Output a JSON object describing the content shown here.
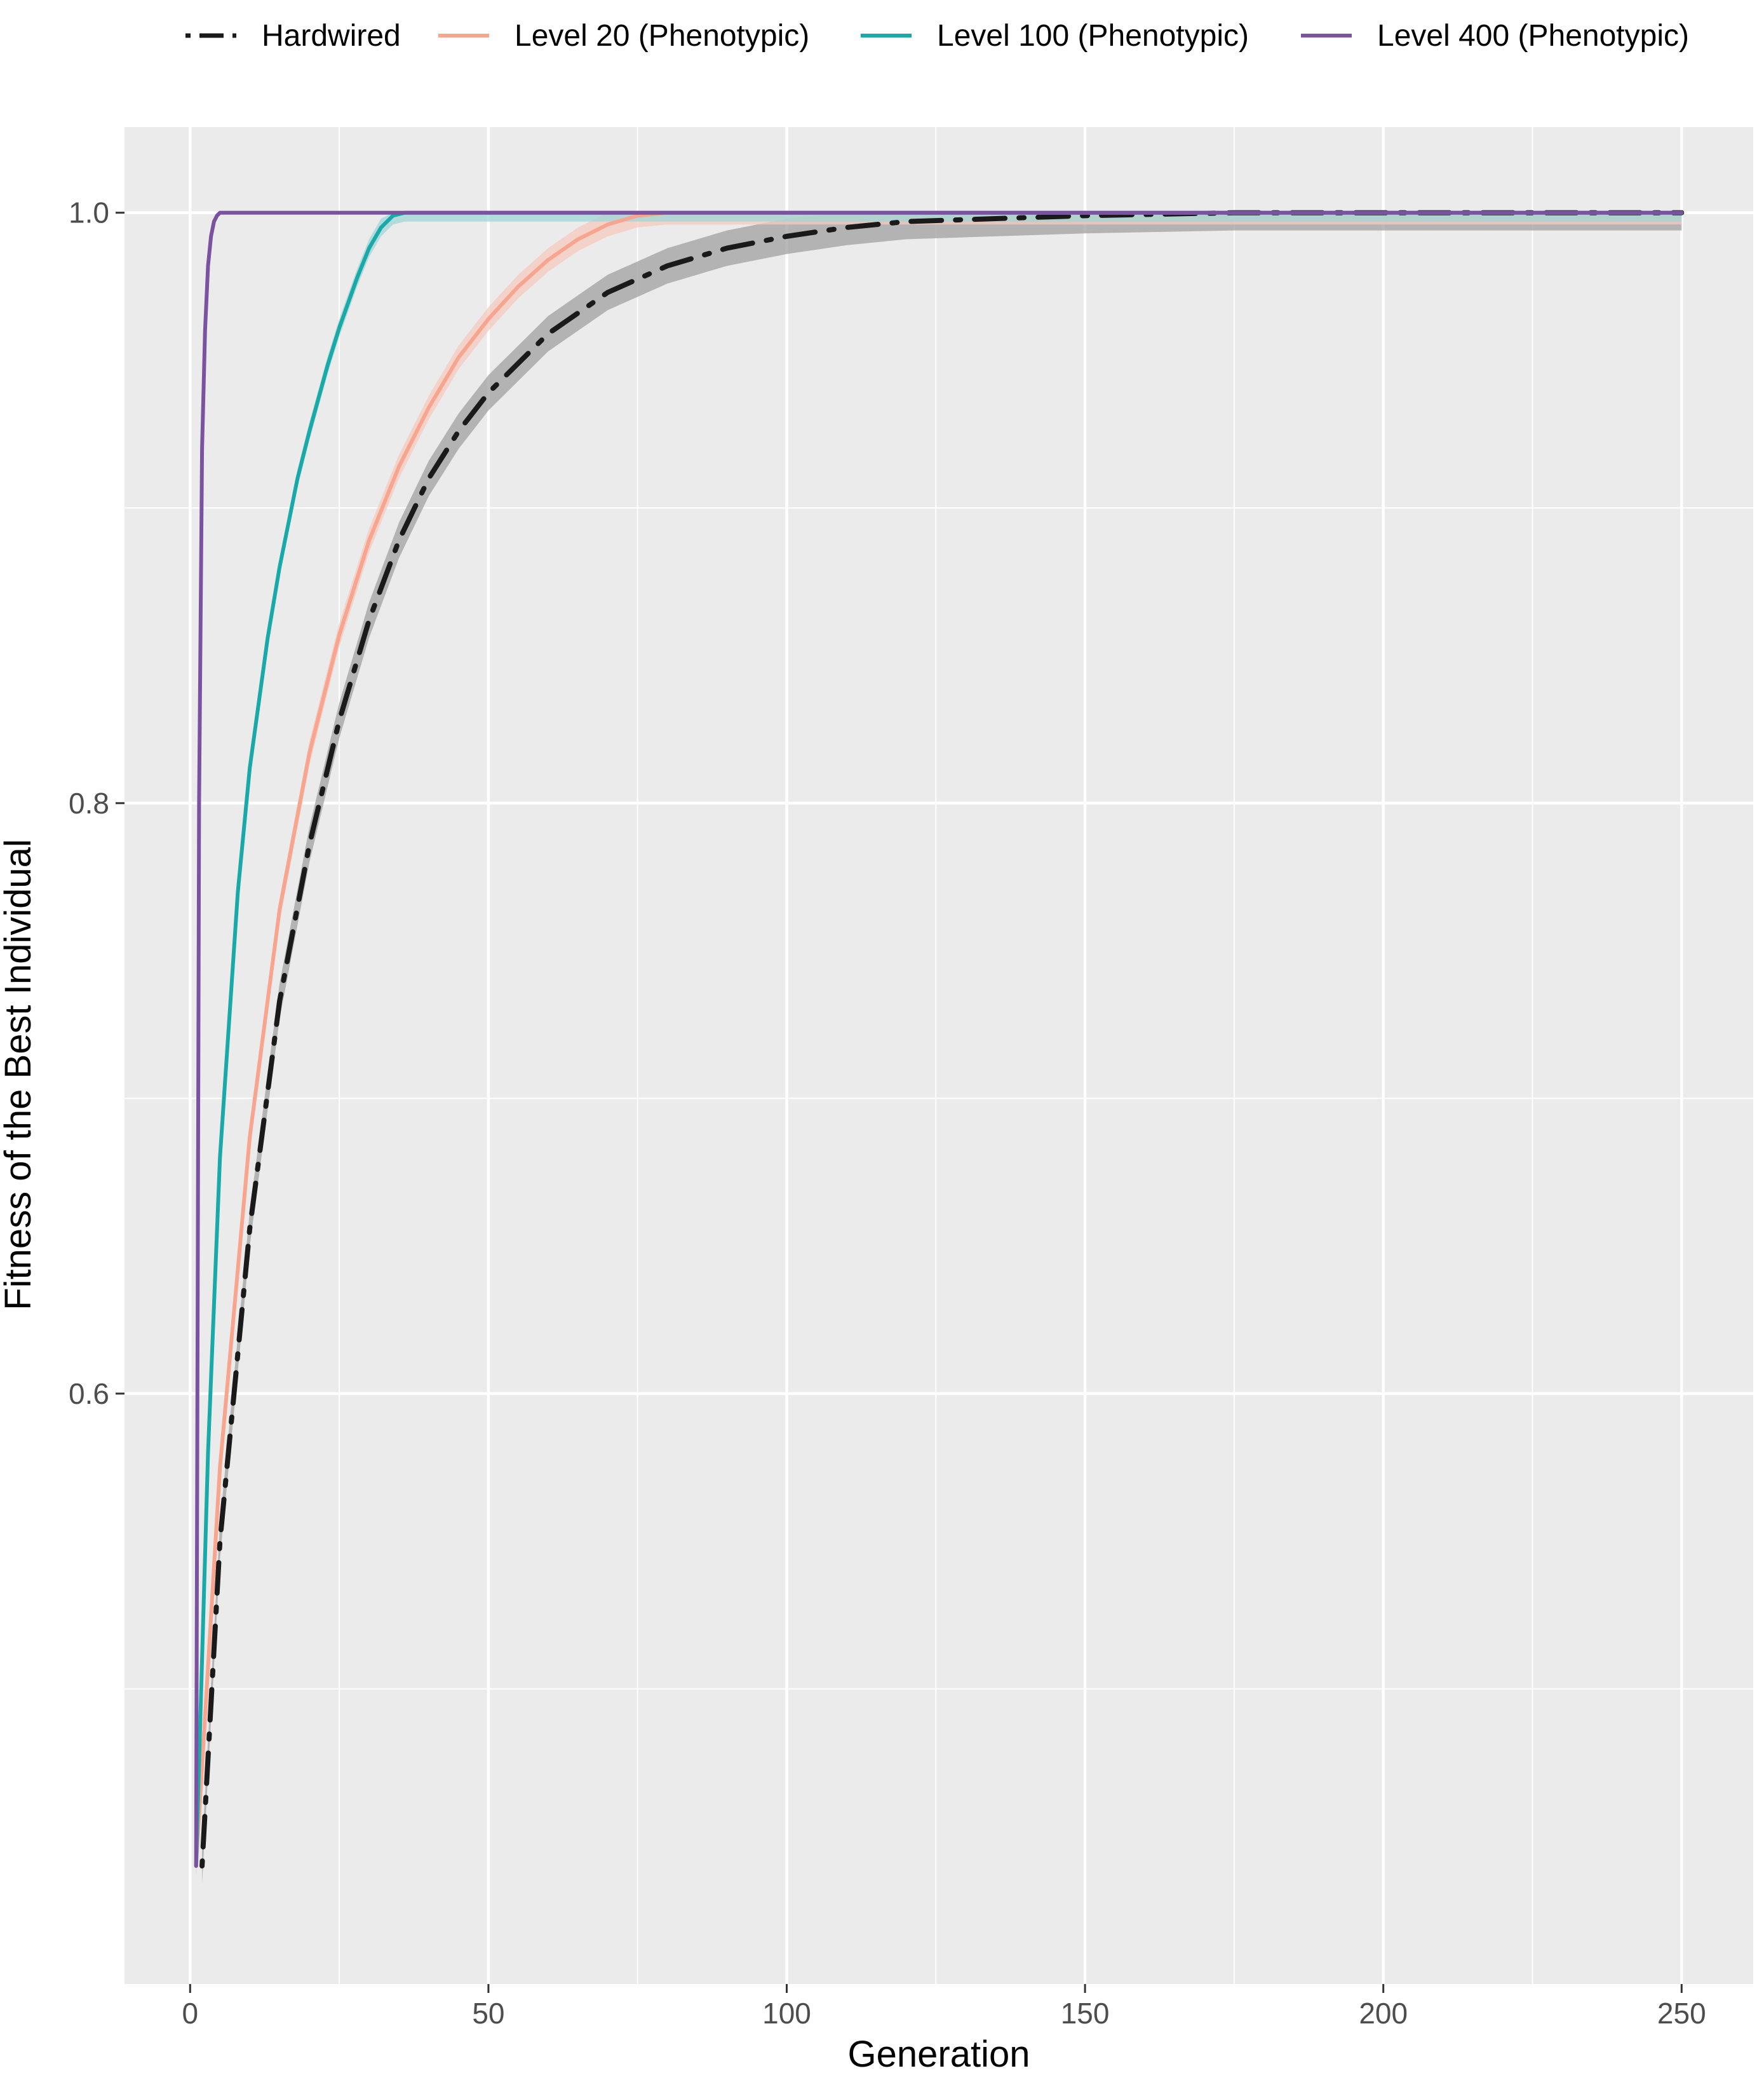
{
  "chart_data": {
    "type": "line",
    "title": "",
    "xlabel": "Generation",
    "ylabel": "Fitness of the Best Individual",
    "xlim": [
      -11,
      262
    ],
    "ylim": [
      0.4,
      1.029
    ],
    "x_ticks": [
      0,
      50,
      100,
      150,
      200,
      250
    ],
    "x_tick_labels": [
      "0",
      "50",
      "100",
      "150",
      "200",
      "250"
    ],
    "y_ticks": [
      0.6,
      0.8,
      1.0
    ],
    "y_tick_labels": [
      "0.6",
      "0.8",
      "1.0"
    ],
    "x_minor_ticks": [
      25,
      75,
      125,
      175,
      225
    ],
    "y_minor_ticks": [
      0.5,
      0.7,
      0.9
    ],
    "grid": true,
    "legend_position": "top",
    "series": [
      {
        "name": "Hardwired",
        "color": "#1a1a1a",
        "dash": "dotdash",
        "ribbon_color": "#a0a0a0",
        "ribbon_half_width": 0.006,
        "x": [
          2,
          5,
          10,
          15,
          20,
          25,
          30,
          35,
          40,
          45,
          50,
          60,
          70,
          80,
          90,
          100,
          110,
          120,
          135,
          150,
          175,
          200,
          225,
          250
        ],
        "y": [
          0.44,
          0.55,
          0.656,
          0.733,
          0.786,
          0.828,
          0.862,
          0.889,
          0.91,
          0.926,
          0.939,
          0.959,
          0.973,
          0.982,
          0.988,
          0.992,
          0.995,
          0.997,
          0.998,
          0.999,
          1.0,
          1.0,
          1.0,
          1.0
        ]
      },
      {
        "name": "Level 20 (Phenotypic)",
        "color": "#f8a58f",
        "dash": "solid",
        "ribbon_color": "#f5c9be",
        "ribbon_half_width": 0.004,
        "x": [
          1,
          5,
          10,
          15,
          20,
          25,
          30,
          35,
          40,
          45,
          50,
          55,
          60,
          65,
          70,
          75,
          80,
          90,
          250
        ],
        "y": [
          0.44,
          0.575,
          0.687,
          0.764,
          0.817,
          0.857,
          0.889,
          0.914,
          0.934,
          0.951,
          0.964,
          0.975,
          0.984,
          0.991,
          0.996,
          0.999,
          1.0,
          1.0,
          1.0
        ]
      },
      {
        "name": "Level 100 (Phenotypic)",
        "color": "#1aa9a9",
        "dash": "solid",
        "ribbon_color": "#9fd6d6",
        "ribbon_half_width": 0.003,
        "x": [
          1,
          3,
          5,
          8,
          10,
          13,
          15,
          18,
          20,
          23,
          25,
          28,
          30,
          32,
          34,
          36,
          250
        ],
        "y": [
          0.44,
          0.58,
          0.68,
          0.77,
          0.812,
          0.856,
          0.88,
          0.91,
          0.926,
          0.948,
          0.961,
          0.978,
          0.988,
          0.995,
          0.999,
          1.0,
          1.0
        ]
      },
      {
        "name": "Level 400 (Phenotypic)",
        "color": "#7b52a0",
        "dash": "solid",
        "ribbon_color": "#c6b3d8",
        "ribbon_half_width": 0.0,
        "x": [
          1,
          1.5,
          2,
          2.5,
          3,
          3.5,
          4,
          4.5,
          5,
          250
        ],
        "y": [
          0.44,
          0.8,
          0.92,
          0.96,
          0.982,
          0.992,
          0.997,
          0.999,
          1.0,
          1.0
        ]
      }
    ]
  }
}
